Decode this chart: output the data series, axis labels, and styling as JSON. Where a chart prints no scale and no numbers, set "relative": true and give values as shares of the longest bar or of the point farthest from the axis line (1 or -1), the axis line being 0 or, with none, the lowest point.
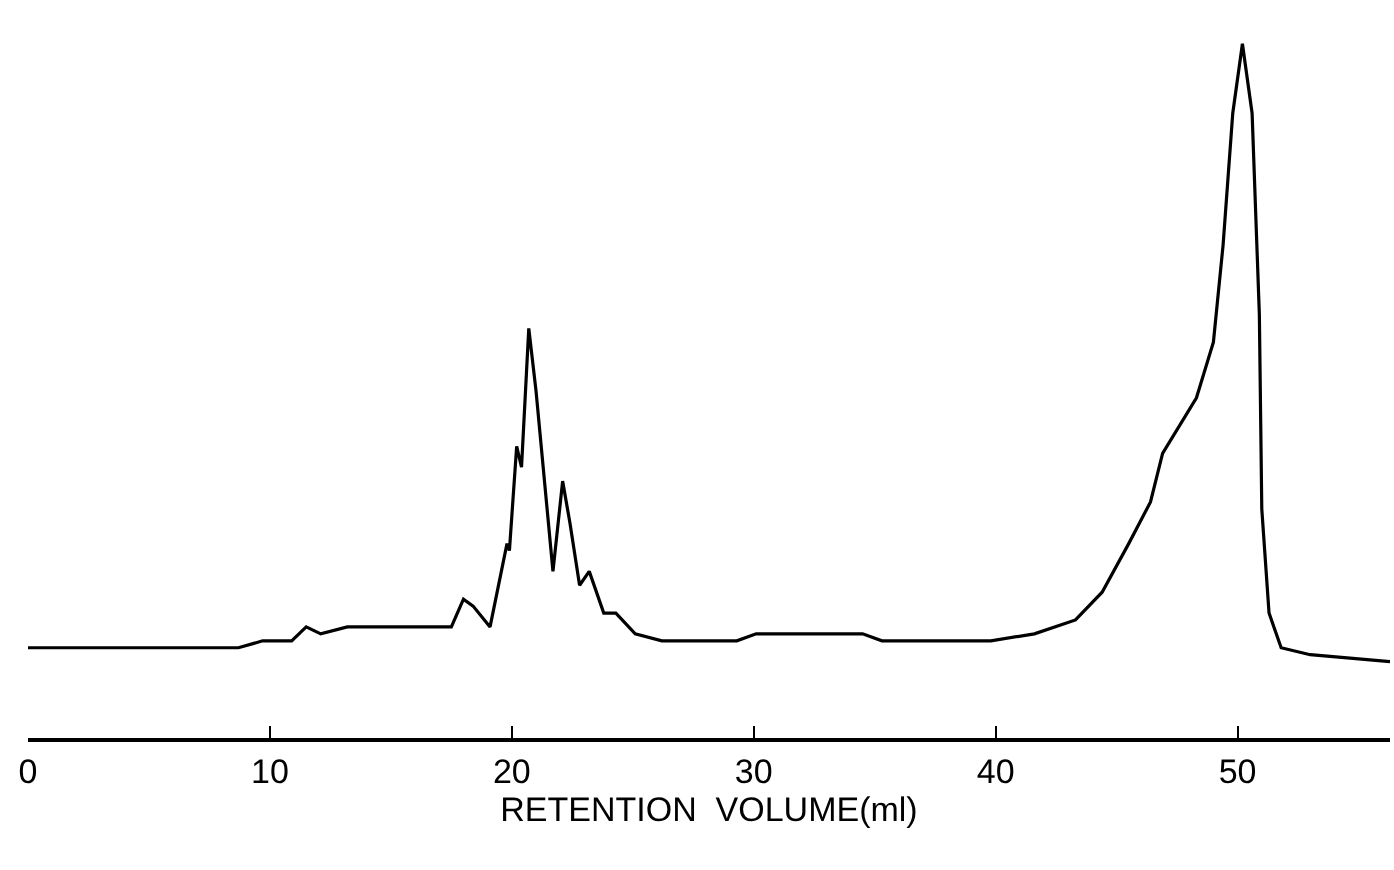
{
  "chart_data": {
    "type": "line",
    "relative": true,
    "xlabel": "RETENTION  VOLUME(ml)",
    "xlim": [
      0,
      56.3
    ],
    "xticks": [
      0,
      10,
      20,
      30,
      40,
      50
    ],
    "marker": "none",
    "line_style": "solid",
    "series": [
      {
        "color": "#000000",
        "x": [
          0,
          8.7,
          9.7,
          10.9,
          11.5,
          12.1,
          13.2,
          15.0,
          17.5,
          18.0,
          18.4,
          19.1,
          19.8,
          19.9,
          20.2,
          20.4,
          20.7,
          21.0,
          21.7,
          22.1,
          22.4,
          22.8,
          23.2,
          23.8,
          24.3,
          25.1,
          26.2,
          27.6,
          29.3,
          30.1,
          34.5,
          35.3,
          39.8,
          41.6,
          43.3,
          44.4,
          45.5,
          46.4,
          46.9,
          48.3,
          49.0,
          49.4,
          49.8,
          50.2,
          50.6,
          50.9,
          51.0,
          51.3,
          51.8,
          53.0,
          56.3
        ],
        "values": [
          0.13,
          0.13,
          0.14,
          0.14,
          0.16,
          0.15,
          0.16,
          0.16,
          0.16,
          0.2,
          0.19,
          0.16,
          0.28,
          0.27,
          0.42,
          0.39,
          0.59,
          0.5,
          0.24,
          0.37,
          0.31,
          0.22,
          0.24,
          0.18,
          0.18,
          0.15,
          0.14,
          0.14,
          0.14,
          0.15,
          0.15,
          0.14,
          0.14,
          0.15,
          0.17,
          0.21,
          0.28,
          0.34,
          0.41,
          0.49,
          0.57,
          0.71,
          0.9,
          1.0,
          0.9,
          0.61,
          0.33,
          0.18,
          0.13,
          0.12,
          0.11
        ]
      }
    ]
  }
}
